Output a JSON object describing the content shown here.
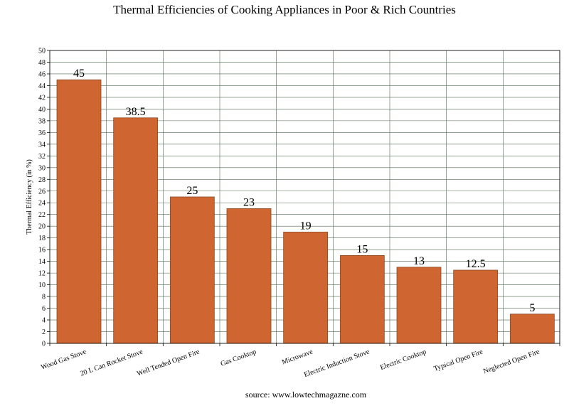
{
  "chart_data": {
    "type": "bar",
    "title": "Thermal Efficiencies of Cooking Appliances in Poor & Rich Countries",
    "ylabel": "Thermal Efficiency (in %)",
    "xlabel": "",
    "source": "source: www.lowtechmagazne.com",
    "categories": [
      "Wood Gas Stove",
      "20 L Can Rocket Stove",
      "Well Tended Open Fire",
      "Gas Cooktop",
      "Microwave",
      "Electric Induction Stove",
      "Electric Cooktop",
      "Typical Open Fire",
      "Neglected Open Fire"
    ],
    "values": [
      45,
      38.5,
      25,
      23,
      19,
      15,
      13,
      12.5,
      5
    ],
    "value_labels": [
      "45",
      "38.5",
      "25",
      "23",
      "19",
      "15",
      "13",
      "12.5",
      "5"
    ],
    "ylim": [
      0,
      50
    ],
    "yticks": [
      "0",
      "2",
      "4",
      "6",
      "8",
      "10",
      "12",
      "14",
      "16",
      "18",
      "20",
      "22",
      "24",
      "26",
      "28",
      "30",
      "32",
      "34",
      "36",
      "38",
      "40",
      "42",
      "44",
      "46",
      "48",
      "50"
    ],
    "grid": true,
    "bar_color": "#cf6631",
    "bar_edge_color": "#8c4a22",
    "grid_color": "#4f6a4f"
  }
}
